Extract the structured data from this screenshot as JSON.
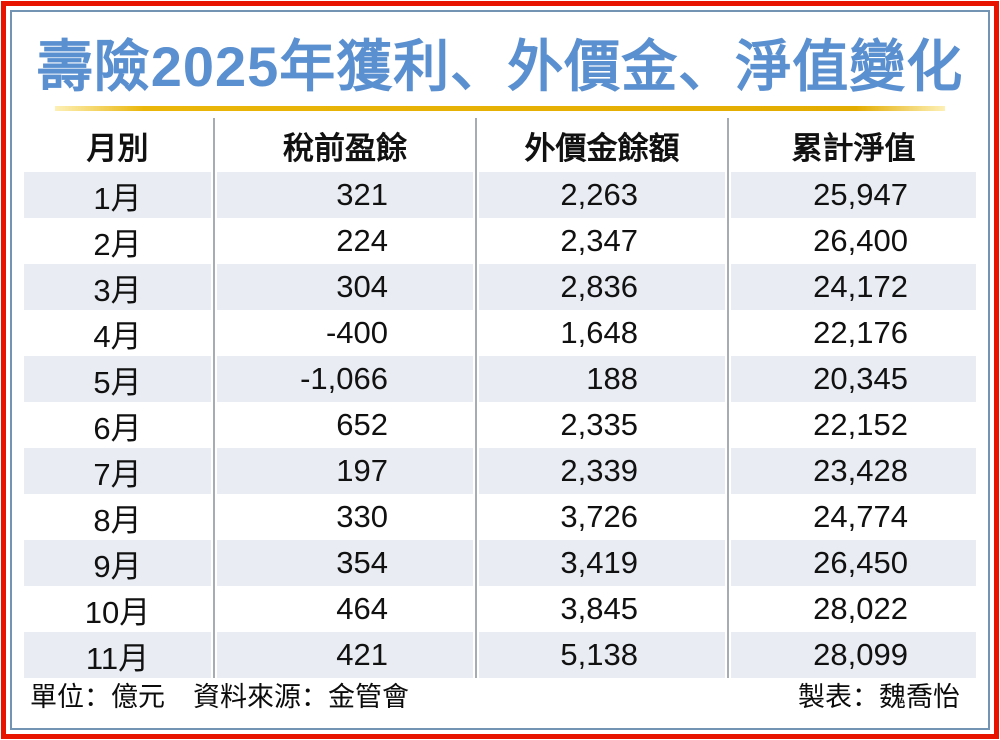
{
  "title": "壽險2025年獲利、外價金、淨值變化",
  "colors": {
    "frame_red": "#e91400",
    "frame_blue": "#7494b4",
    "title_blue": "#5a8fd0",
    "gold_rule": "#e9b609",
    "alt_row_bg": "#e9edf3",
    "divider_gray": "#a7acb4"
  },
  "table": {
    "headers": [
      "月別",
      "稅前盈餘",
      "外價金餘額",
      "累計淨值"
    ],
    "rows": [
      [
        "1月",
        "321",
        "2,263",
        "25,947"
      ],
      [
        "2月",
        "224",
        "2,347",
        "26,400"
      ],
      [
        "3月",
        "304",
        "2,836",
        "24,172"
      ],
      [
        "4月",
        "-400",
        "1,648",
        "22,176"
      ],
      [
        "5月",
        "-1,066",
        "188",
        "20,345"
      ],
      [
        "6月",
        "652",
        "2,335",
        "22,152"
      ],
      [
        "7月",
        "197",
        "2,339",
        "23,428"
      ],
      [
        "8月",
        "330",
        "3,726",
        "24,774"
      ],
      [
        "9月",
        "354",
        "3,419",
        "26,450"
      ],
      [
        "10月",
        "464",
        "3,845",
        "28,022"
      ],
      [
        "11月",
        "421",
        "5,138",
        "28,099"
      ]
    ]
  },
  "footer": {
    "unit_label": "單位：億元",
    "source_label": "資料來源：金管會",
    "author_label": "製表：魏喬怡"
  },
  "chart_data": {
    "type": "table",
    "title": "壽險2025年獲利、外價金、淨值變化",
    "categories": [
      "1月",
      "2月",
      "3月",
      "4月",
      "5月",
      "6月",
      "7月",
      "8月",
      "9月",
      "10月",
      "11月"
    ],
    "series": [
      {
        "name": "稅前盈餘",
        "values": [
          321,
          224,
          304,
          -400,
          -1066,
          652,
          197,
          330,
          354,
          464,
          421
        ]
      },
      {
        "name": "外價金餘額",
        "values": [
          2263,
          2347,
          2836,
          1648,
          188,
          2335,
          2339,
          3726,
          3419,
          3845,
          5138
        ]
      },
      {
        "name": "累計淨值",
        "values": [
          25947,
          26400,
          24172,
          22176,
          20345,
          22152,
          23428,
          24774,
          26450,
          28022,
          28099
        ]
      }
    ],
    "unit": "億元",
    "source": "金管會",
    "author": "魏喬怡"
  }
}
